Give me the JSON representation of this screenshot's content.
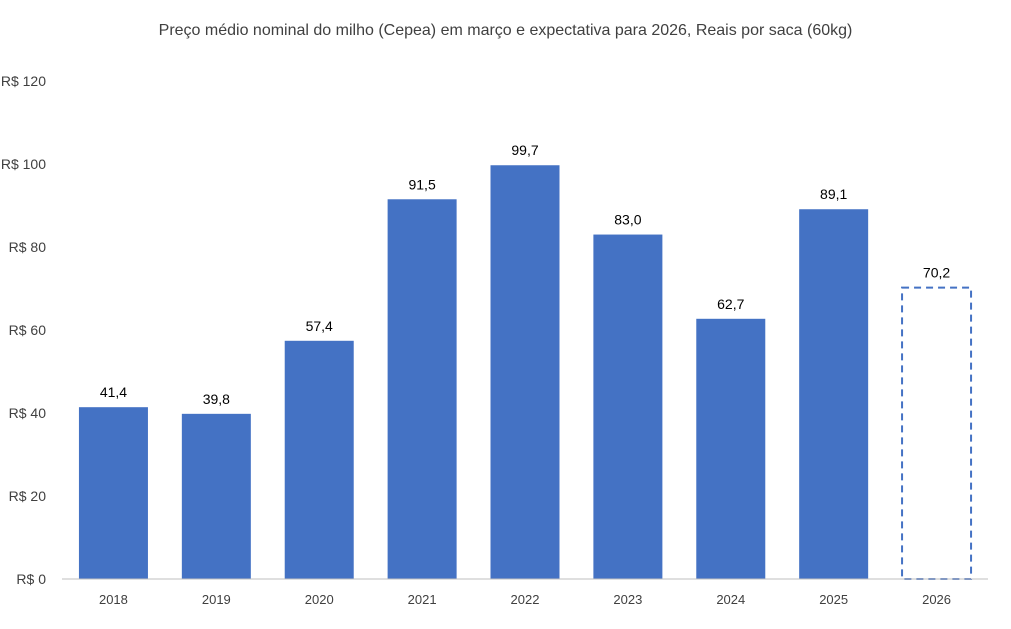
{
  "chart_data": {
    "type": "bar",
    "title": "Preço médio nominal do milho (Cepea) em março e expectativa para 2026, Reais por saca (60kg)",
    "categories": [
      "2018",
      "2019",
      "2020",
      "2021",
      "2022",
      "2023",
      "2024",
      "2025",
      "2026"
    ],
    "values": [
      41.4,
      39.8,
      57.4,
      91.5,
      99.7,
      83.0,
      62.7,
      89.1,
      70.2
    ],
    "data_labels": [
      "41,4",
      "39,8",
      "57,4",
      "91,5",
      "99,7",
      "83,0",
      "62,7",
      "89,1",
      "70,2"
    ],
    "projected": [
      false,
      false,
      false,
      false,
      false,
      false,
      false,
      false,
      true
    ],
    "ylim": [
      0,
      120
    ],
    "yticks": [
      0,
      20,
      40,
      60,
      80,
      100,
      120
    ],
    "ytick_labels": [
      "R$ 0",
      "R$ 20",
      "R$ 40",
      "R$ 60",
      "R$ 80",
      "R$ 100",
      "R$ 120"
    ],
    "xlabel": "",
    "ylabel": "",
    "grid": false,
    "colors": {
      "bar": "#4472C4",
      "axis": "#BFBFBF",
      "text": "#404040"
    }
  }
}
